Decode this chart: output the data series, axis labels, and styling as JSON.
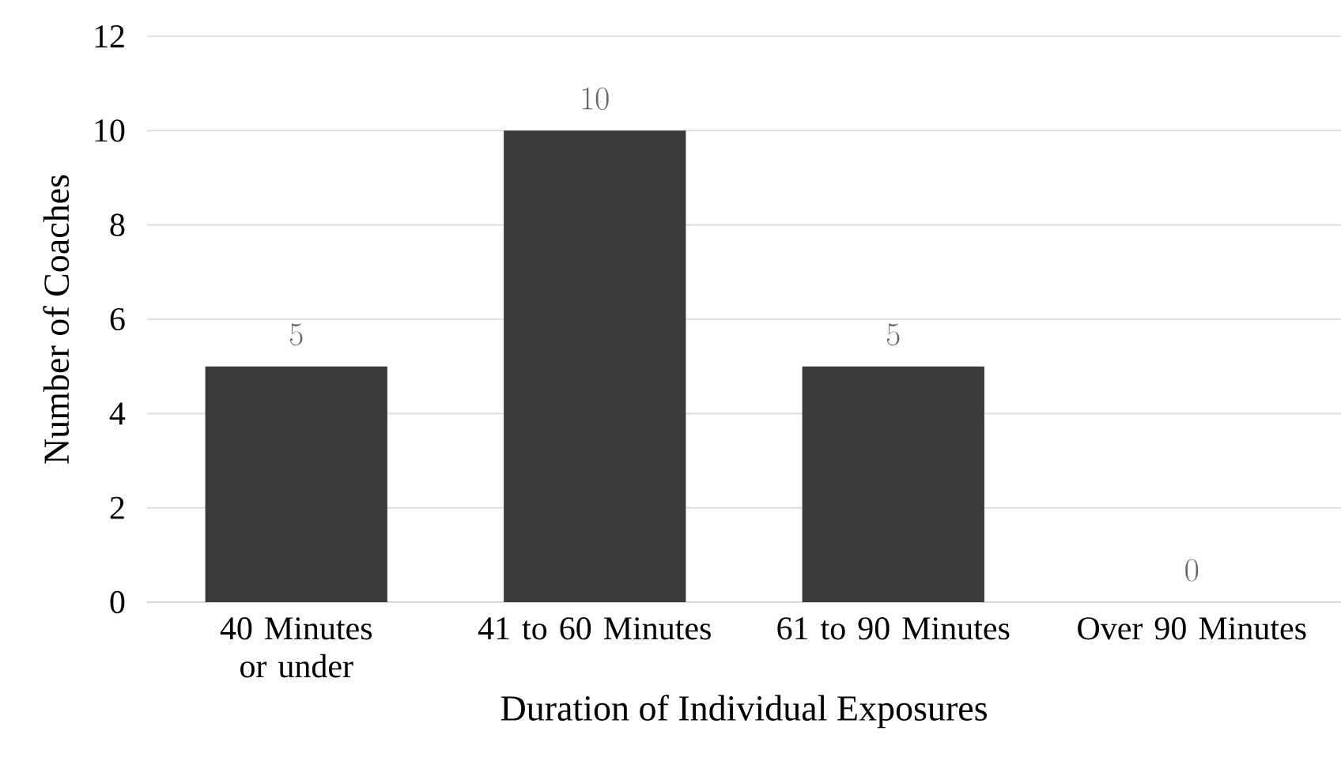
{
  "chart_data": {
    "type": "bar",
    "xlabel": "Duration of Individual Exposures",
    "ylabel": "Number of Coaches",
    "categories": [
      "40 Minutes or under",
      "41 to 60 Minutes",
      "61 to 90 Minutes",
      "Over 90 Minutes"
    ],
    "values": [
      5,
      10,
      5,
      0
    ],
    "color": "#3a3a3a",
    "ylim": [
      0,
      12
    ],
    "yticks": [
      0,
      2,
      4,
      6,
      8,
      10,
      12
    ],
    "grid": "y",
    "data_labels": true
  }
}
